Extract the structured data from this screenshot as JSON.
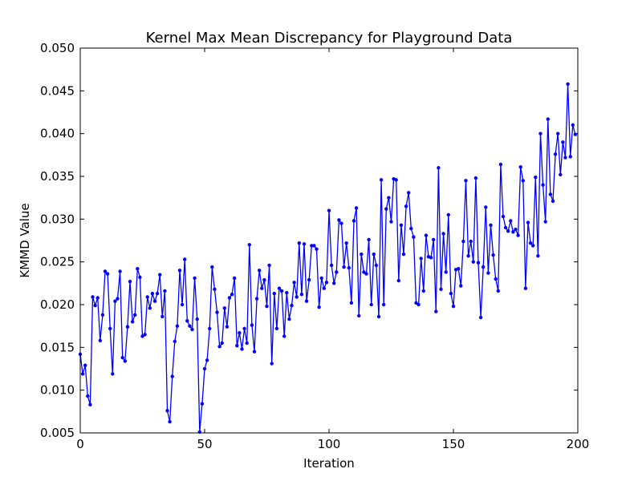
{
  "chart_data": {
    "type": "line",
    "title": "Kernel Max Mean Discrepancy for Playground Data",
    "xlabel": "Iteration",
    "ylabel": "KMMD Value",
    "xlim": [
      0,
      200
    ],
    "ylim": [
      0.005,
      0.05
    ],
    "xticks": [
      0,
      50,
      100,
      150,
      200
    ],
    "xtick_labels": [
      "0",
      "50",
      "100",
      "150",
      "200"
    ],
    "yticks": [
      0.005,
      0.01,
      0.015,
      0.02,
      0.025,
      0.03,
      0.035,
      0.04,
      0.045,
      0.05
    ],
    "ytick_labels": [
      "0.005",
      "0.010",
      "0.015",
      "0.020",
      "0.025",
      "0.030",
      "0.035",
      "0.040",
      "0.045",
      "0.050"
    ],
    "grid": false,
    "color": "#0000ff",
    "x": [
      0,
      1,
      2,
      3,
      4,
      5,
      6,
      7,
      8,
      9,
      10,
      11,
      12,
      13,
      14,
      15,
      16,
      17,
      18,
      19,
      20,
      21,
      22,
      23,
      24,
      25,
      26,
      27,
      28,
      29,
      30,
      31,
      32,
      33,
      34,
      35,
      36,
      37,
      38,
      39,
      40,
      41,
      42,
      43,
      44,
      45,
      46,
      47,
      48,
      49,
      50,
      51,
      52,
      53,
      54,
      55,
      56,
      57,
      58,
      59,
      60,
      61,
      62,
      63,
      64,
      65,
      66,
      67,
      68,
      69,
      70,
      71,
      72,
      73,
      74,
      75,
      76,
      77,
      78,
      79,
      80,
      81,
      82,
      83,
      84,
      85,
      86,
      87,
      88,
      89,
      90,
      91,
      92,
      93,
      94,
      95,
      96,
      97,
      98,
      99,
      100,
      101,
      102,
      103,
      104,
      105,
      106,
      107,
      108,
      109,
      110,
      111,
      112,
      113,
      114,
      115,
      116,
      117,
      118,
      119,
      120,
      121,
      122,
      123,
      124,
      125,
      126,
      127,
      128,
      129,
      130,
      131,
      132,
      133,
      134,
      135,
      136,
      137,
      138,
      139,
      140,
      141,
      142,
      143,
      144,
      145,
      146,
      147,
      148,
      149,
      150,
      151,
      152,
      153,
      154,
      155,
      156,
      157,
      158,
      159,
      160,
      161,
      162,
      163,
      164,
      165,
      166,
      167,
      168,
      169,
      170,
      171,
      172,
      173,
      174,
      175,
      176,
      177,
      178,
      179,
      180,
      181,
      182,
      183,
      184,
      185,
      186,
      187,
      188,
      189,
      190,
      191,
      192,
      193,
      194,
      195,
      196,
      197,
      198,
      199
    ],
    "values": [
      0.0142,
      0.0119,
      0.0129,
      0.0093,
      0.0083,
      0.0209,
      0.0199,
      0.0208,
      0.0158,
      0.0188,
      0.0239,
      0.0236,
      0.0172,
      0.0119,
      0.0204,
      0.0207,
      0.0239,
      0.0138,
      0.0134,
      0.0174,
      0.0227,
      0.018,
      0.0188,
      0.0242,
      0.0232,
      0.0163,
      0.0165,
      0.0209,
      0.0196,
      0.0213,
      0.0204,
      0.0213,
      0.0235,
      0.0186,
      0.0216,
      0.0076,
      0.0063,
      0.0116,
      0.0157,
      0.0175,
      0.024,
      0.02,
      0.0253,
      0.0181,
      0.0175,
      0.0171,
      0.0231,
      0.0183,
      0.0051,
      0.0084,
      0.0125,
      0.0135,
      0.0172,
      0.0244,
      0.0218,
      0.0191,
      0.0151,
      0.0155,
      0.0196,
      0.0174,
      0.0208,
      0.0212,
      0.0231,
      0.0152,
      0.0167,
      0.0148,
      0.0172,
      0.0155,
      0.027,
      0.0176,
      0.0145,
      0.0207,
      0.024,
      0.0219,
      0.0229,
      0.0198,
      0.0246,
      0.0131,
      0.0213,
      0.0172,
      0.0219,
      0.0216,
      0.0163,
      0.0214,
      0.0183,
      0.0199,
      0.0226,
      0.0209,
      0.0272,
      0.0212,
      0.0271,
      0.0204,
      0.0229,
      0.0269,
      0.0269,
      0.0265,
      0.0197,
      0.0231,
      0.0219,
      0.0226,
      0.031,
      0.0246,
      0.0225,
      0.0238,
      0.0299,
      0.0295,
      0.0244,
      0.0272,
      0.0243,
      0.0202,
      0.0298,
      0.0313,
      0.0187,
      0.0259,
      0.0238,
      0.0236,
      0.0276,
      0.02,
      0.0259,
      0.0246,
      0.0186,
      0.0346,
      0.02,
      0.0312,
      0.0325,
      0.0297,
      0.0347,
      0.0346,
      0.0228,
      0.0293,
      0.0259,
      0.0315,
      0.0331,
      0.0289,
      0.0279,
      0.0202,
      0.02,
      0.0254,
      0.0216,
      0.0281,
      0.0256,
      0.0255,
      0.0276,
      0.0192,
      0.036,
      0.0218,
      0.0283,
      0.0238,
      0.0305,
      0.0213,
      0.0198,
      0.0241,
      0.0242,
      0.0222,
      0.0274,
      0.0345,
      0.0257,
      0.0274,
      0.025,
      0.0348,
      0.0249,
      0.0185,
      0.0244,
      0.0314,
      0.0237,
      0.0293,
      0.0258,
      0.023,
      0.0216,
      0.0364,
      0.0303,
      0.029,
      0.0286,
      0.0298,
      0.0285,
      0.0288,
      0.0281,
      0.0361,
      0.0345,
      0.0219,
      0.0296,
      0.0272,
      0.0269,
      0.0349,
      0.0257,
      0.04,
      0.034,
      0.0297,
      0.0417,
      0.0329,
      0.0321,
      0.0376,
      0.04,
      0.0352,
      0.039,
      0.0372,
      0.0458,
      0.0373,
      0.041,
      0.0399
    ]
  }
}
